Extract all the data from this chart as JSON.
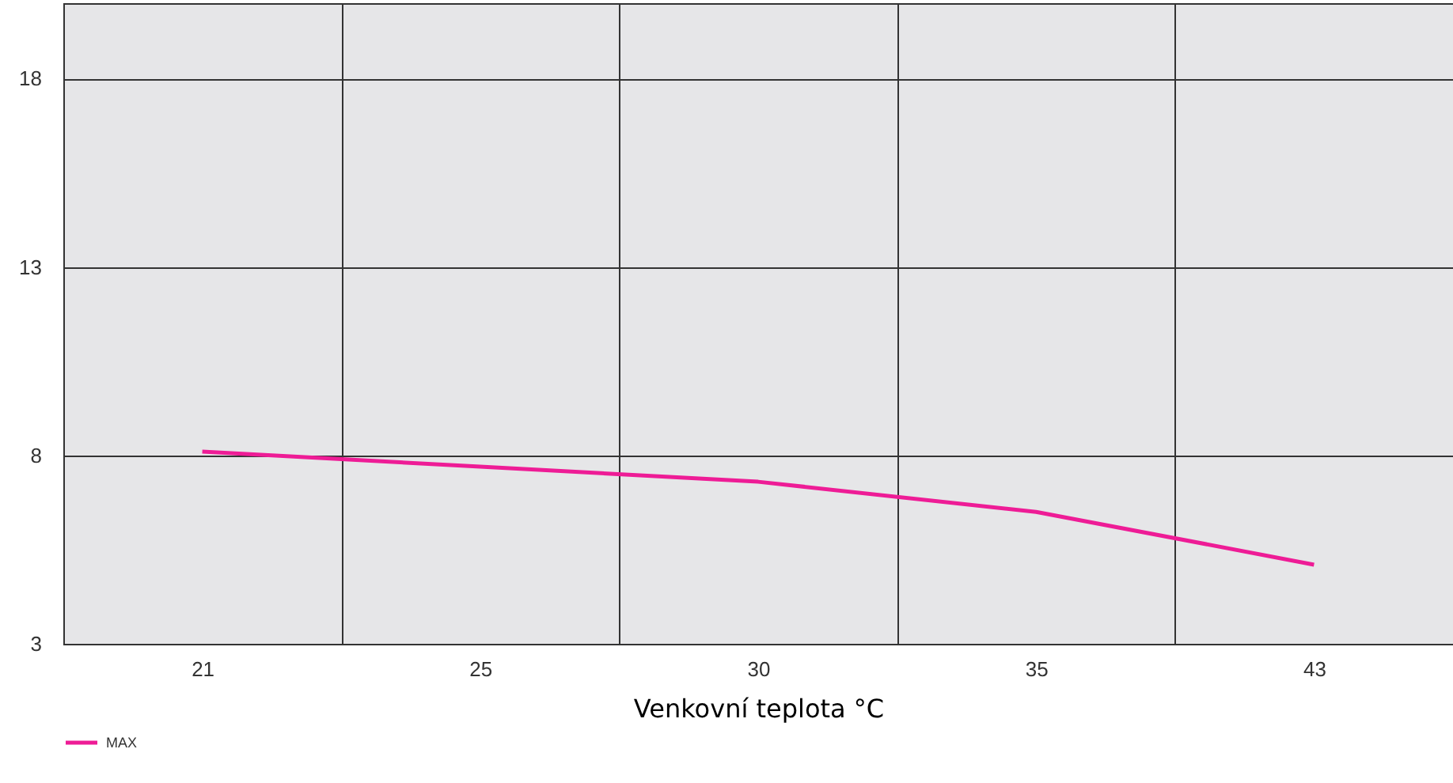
{
  "chart_data": {
    "type": "line",
    "xlabel": "Venkovní teplota °C",
    "categories": [
      "21",
      "25",
      "30",
      "35",
      "43"
    ],
    "series": [
      {
        "name": "MAX",
        "color": "#ee1c96",
        "values": [
          8.1,
          7.7,
          7.3,
          6.5,
          5.1
        ]
      }
    ],
    "ylim": [
      3,
      20
    ],
    "yticks": [
      3,
      8,
      13,
      18
    ],
    "grid": true,
    "legend": "bottom",
    "marker": "none",
    "line_style": "solid"
  }
}
